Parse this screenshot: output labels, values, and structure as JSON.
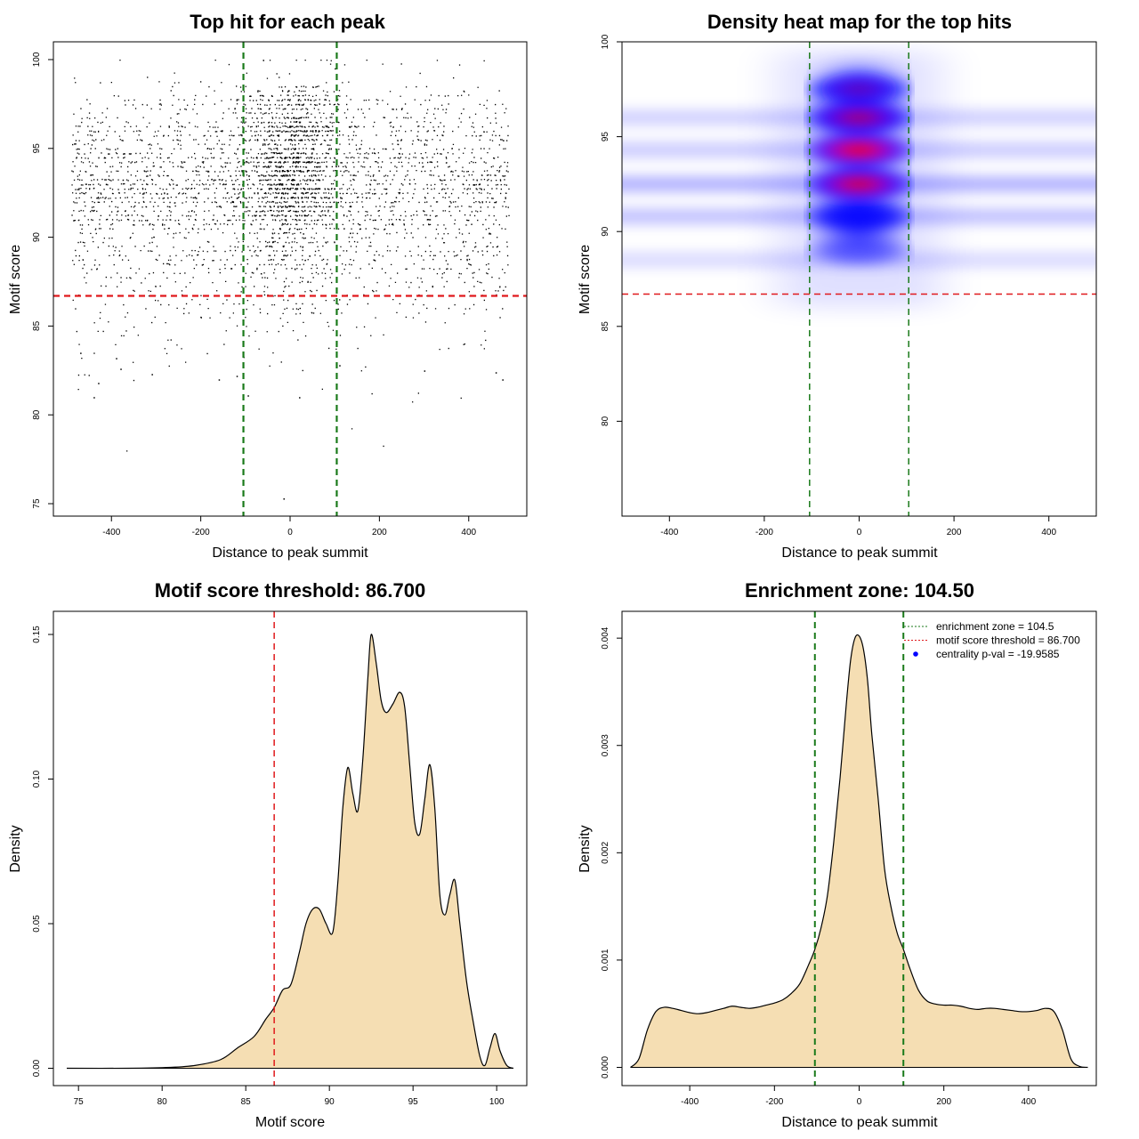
{
  "colors": {
    "threshold_line": "#e0191c",
    "zone_line": "#1a7a1a",
    "density_fill": "#f5deb3",
    "heat_low": "#ffffff",
    "heat_mid": "#0000ff",
    "heat_high": "#ff0000",
    "points": "#000000"
  },
  "chart_data": [
    {
      "id": "top_hits_scatter",
      "type": "scatter",
      "title": "Top hit for each peak",
      "xlabel": "Distance to peak summit",
      "ylabel": "Motif score",
      "xlim": [
        -530,
        530
      ],
      "ylim": [
        74.3,
        101.0
      ],
      "xticks": [
        -400,
        -200,
        0,
        200,
        400
      ],
      "yticks": [
        75,
        80,
        85,
        90,
        95,
        100
      ],
      "point_color": "#000000",
      "approx_points": 9000,
      "x_range_of_points": [
        -490,
        490
      ],
      "score_distribution_modes": [
        92.5,
        94.0,
        96.0,
        97.5
      ],
      "centrality_width": 104.5,
      "sparse_points": [
        [
          -440,
          81
        ],
        [
          -430,
          81.8
        ],
        [
          -390,
          83.2
        ],
        [
          -380,
          82.6
        ],
        [
          -310,
          82.3
        ],
        [
          -160,
          82.0
        ],
        [
          -120,
          82.2
        ],
        [
          -95,
          81.1
        ],
        [
          20,
          81.0
        ],
        [
          -15,
          75.3
        ],
        [
          110,
          82.8
        ],
        [
          300,
          82.5
        ],
        [
          460,
          82.4
        ],
        [
          475,
          82.0
        ],
        [
          -470,
          83.5
        ]
      ],
      "hlines": [
        {
          "value": 86.7,
          "role": "motif score threshold",
          "color": "#e0191c",
          "style": "dashed"
        }
      ],
      "vlines": [
        {
          "value": -104.5,
          "role": "enrichment zone",
          "color": "#1a7a1a",
          "style": "dashed"
        },
        {
          "value": 104.5,
          "role": "enrichment zone",
          "color": "#1a7a1a",
          "style": "dashed"
        }
      ],
      "grid": false,
      "legend": "none"
    },
    {
      "id": "density_heatmap",
      "type": "heatmap",
      "title": "Density heat map for the top hits",
      "xlabel": "Distance to peak summit",
      "ylabel": "Motif score",
      "xlim": [
        -500,
        500
      ],
      "ylim": [
        75,
        100
      ],
      "xticks": [
        -400,
        -200,
        0,
        200,
        400
      ],
      "yticks": [
        80,
        85,
        90,
        95,
        100
      ],
      "color_scale": [
        "#ffffff",
        "#0000ff",
        "#ff0000"
      ],
      "hotspots": [
        {
          "x": 0,
          "y": 97.5,
          "intensity": 0.85
        },
        {
          "x": 0,
          "y": 96.0,
          "intensity": 1.0
        },
        {
          "x": 0,
          "y": 94.3,
          "intensity": 1.15
        },
        {
          "x": 0,
          "y": 92.5,
          "intensity": 1.1
        },
        {
          "x": 0,
          "y": 90.8,
          "intensity": 0.8
        },
        {
          "x": 0,
          "y": 89.0,
          "intensity": 0.45
        }
      ],
      "background_bands_y": [
        92.5,
        90.8,
        94.3,
        96.0,
        88.5
      ],
      "hlines": [
        {
          "value": 86.7,
          "color": "#e0191c",
          "style": "dashed"
        }
      ],
      "vlines": [
        {
          "value": -104.5,
          "color": "#1a7a1a",
          "style": "dashed"
        },
        {
          "value": 104.5,
          "color": "#1a7a1a",
          "style": "dashed"
        }
      ],
      "grid": false,
      "legend": "none"
    },
    {
      "id": "score_density",
      "type": "area",
      "title": "Motif score threshold: 86.700",
      "xlabel": "Motif score",
      "ylabel": "Density",
      "xlim": [
        73.5,
        101.8
      ],
      "ylim": [
        -0.006,
        0.158
      ],
      "xticks": [
        75,
        80,
        85,
        90,
        95,
        100
      ],
      "yticks": [
        0.0,
        0.05,
        0.1,
        0.15
      ],
      "ytick_labels": [
        "0.00",
        "0.05",
        "0.10",
        "0.15"
      ],
      "fill_color": "#f5deb3",
      "x": [
        74.3,
        78.0,
        80.5,
        82.0,
        83.5,
        84.5,
        85.5,
        86.2,
        86.7,
        87.2,
        87.7,
        88.2,
        88.6,
        89.0,
        89.4,
        89.8,
        90.2,
        90.5,
        90.8,
        91.1,
        91.4,
        91.7,
        92.0,
        92.3,
        92.5,
        92.8,
        93.1,
        93.4,
        93.8,
        94.2,
        94.5,
        94.8,
        95.1,
        95.4,
        95.7,
        96.0,
        96.3,
        96.6,
        96.9,
        97.2,
        97.5,
        97.8,
        98.2,
        98.6,
        99.0,
        99.3,
        99.6,
        99.9,
        100.2,
        100.6,
        101.0
      ],
      "y": [
        0.0,
        0.0,
        0.0003,
        0.001,
        0.003,
        0.007,
        0.011,
        0.017,
        0.021,
        0.027,
        0.029,
        0.04,
        0.05,
        0.055,
        0.055,
        0.05,
        0.047,
        0.064,
        0.09,
        0.104,
        0.095,
        0.089,
        0.107,
        0.135,
        0.15,
        0.14,
        0.127,
        0.123,
        0.126,
        0.13,
        0.125,
        0.105,
        0.085,
        0.081,
        0.093,
        0.105,
        0.09,
        0.06,
        0.053,
        0.06,
        0.065,
        0.05,
        0.03,
        0.016,
        0.004,
        0.001,
        0.007,
        0.012,
        0.006,
        0.001,
        0.0
      ],
      "vlines": [
        {
          "value": 86.7,
          "color": "#e0191c",
          "style": "dashed"
        }
      ],
      "grid": false,
      "legend": "none"
    },
    {
      "id": "distance_density",
      "type": "area",
      "title": "Enrichment zone: 104.50",
      "xlabel": "Distance to peak summit",
      "ylabel": "Density",
      "xlim": [
        -560,
        560
      ],
      "ylim": [
        -0.00017,
        0.00425
      ],
      "xticks": [
        -400,
        -200,
        0,
        200,
        400
      ],
      "yticks": [
        0.0,
        0.001,
        0.002,
        0.003,
        0.004
      ],
      "ytick_labels": [
        "0.000",
        "0.001",
        "0.002",
        "0.003",
        "0.004"
      ],
      "fill_color": "#f5deb3",
      "x": [
        -540,
        -520,
        -500,
        -480,
        -460,
        -440,
        -420,
        -400,
        -380,
        -360,
        -340,
        -320,
        -300,
        -280,
        -260,
        -240,
        -220,
        -200,
        -180,
        -160,
        -140,
        -120,
        -104.5,
        -90,
        -75,
        -60,
        -45,
        -30,
        -20,
        -10,
        0,
        10,
        20,
        30,
        45,
        60,
        75,
        90,
        104.5,
        120,
        140,
        160,
        180,
        200,
        220,
        240,
        260,
        280,
        300,
        320,
        340,
        360,
        380,
        400,
        420,
        440,
        460,
        480,
        500,
        520,
        540
      ],
      "y": [
        0.0,
        8e-05,
        0.00035,
        0.00052,
        0.00056,
        0.00055,
        0.00053,
        0.00051,
        0.0005,
        0.00051,
        0.00053,
        0.00055,
        0.00057,
        0.00056,
        0.00055,
        0.00056,
        0.00058,
        0.0006,
        0.00063,
        0.00069,
        0.00078,
        0.00095,
        0.0011,
        0.0013,
        0.0016,
        0.0021,
        0.0027,
        0.0034,
        0.0038,
        0.004,
        0.00402,
        0.0039,
        0.0036,
        0.0031,
        0.0025,
        0.00185,
        0.0015,
        0.00125,
        0.0011,
        0.00092,
        0.00072,
        0.00062,
        0.00059,
        0.00058,
        0.00058,
        0.00057,
        0.00055,
        0.00054,
        0.00055,
        0.00055,
        0.00054,
        0.00053,
        0.00052,
        0.00052,
        0.00053,
        0.00055,
        0.00052,
        0.00035,
        8e-05,
        1e-05,
        0.0
      ],
      "vlines": [
        {
          "value": -104.5,
          "color": "#1a7a1a",
          "style": "dashed"
        },
        {
          "value": 104.5,
          "color": "#1a7a1a",
          "style": "dashed"
        }
      ],
      "legend_position": "top-right",
      "legend": [
        {
          "label": "enrichment zone = 104.5",
          "color": "#1a7a1a",
          "marker": "dotted-line"
        },
        {
          "label": "motif score threshold = 86.700",
          "color": "#e0191c",
          "marker": "dotted-line"
        },
        {
          "label": "centrality p-val = -19.9585",
          "color": "#0000ff",
          "marker": "point"
        }
      ],
      "grid": false
    }
  ]
}
